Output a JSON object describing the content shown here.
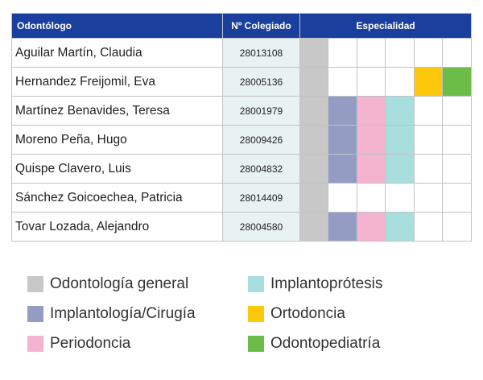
{
  "headers": {
    "name": "Odontólogo",
    "number": "Nº Colegiado",
    "specialty": "Especialidad"
  },
  "colors": {
    "general": "#c8c8c8",
    "implantologia": "#949cc4",
    "periodoncia": "#f4b4d0",
    "implantoprotesis": "#a8dedd",
    "ortodoncia": "#fdc70b",
    "odontopediatria": "#6cbd48",
    "header_bg": "#1b3f9c",
    "number_bg": "#e8f2f0"
  },
  "specialty_columns": [
    "general",
    "implantologia",
    "periodoncia",
    "implantoprotesis",
    "ortodoncia",
    "odontopediatria"
  ],
  "rows": [
    {
      "name": "Aguilar Martín, Claudia",
      "number": "28013108",
      "specialties": [
        "general"
      ]
    },
    {
      "name": "Hernandez Freijomil, Eva",
      "number": "28005136",
      "specialties": [
        "general",
        "ortodoncia",
        "odontopediatria"
      ]
    },
    {
      "name": "Martínez Benavides, Teresa",
      "number": "28001979",
      "specialties": [
        "general",
        "implantologia",
        "periodoncia",
        "implantoprotesis"
      ]
    },
    {
      "name": "Moreno Peña, Hugo",
      "number": "28009426",
      "specialties": [
        "general",
        "implantologia",
        "periodoncia",
        "implantoprotesis"
      ]
    },
    {
      "name": "Quispe Clavero, Luis",
      "number": "28004832",
      "specialties": [
        "general",
        "implantologia",
        "periodoncia",
        "implantoprotesis"
      ]
    },
    {
      "name": "Sánchez Goicoechea, Patricia",
      "number": "28014409",
      "specialties": [
        "general"
      ]
    },
    {
      "name": "Tovar Lozada, Alejandro",
      "number": "28004580",
      "specialties": [
        "general",
        "implantologia",
        "periodoncia",
        "implantoprotesis"
      ]
    }
  ],
  "legend": [
    {
      "key": "general",
      "label": "Odontología general"
    },
    {
      "key": "implantologia",
      "label": "Implantología/Cirugía"
    },
    {
      "key": "periodoncia",
      "label": "Periodoncia"
    },
    {
      "key": "implantoprotesis",
      "label": "Implantoprótesis"
    },
    {
      "key": "ortodoncia",
      "label": "Ortodoncia"
    },
    {
      "key": "odontopediatria",
      "label": "Odontopediatría"
    }
  ]
}
